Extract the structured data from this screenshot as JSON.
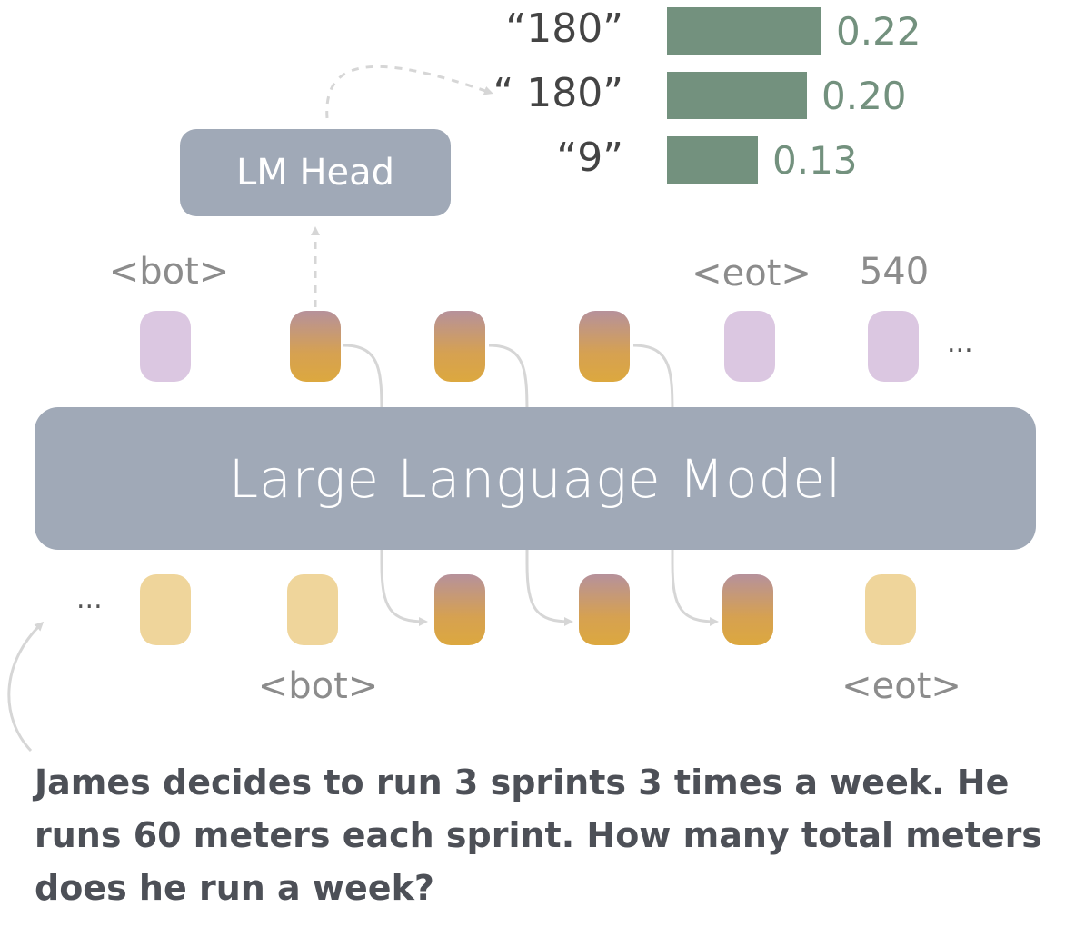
{
  "lm_head_label": "LM Head",
  "llm_label": "Large Language Model",
  "output_labels": {
    "bot": "<bot>",
    "eot": "<eot>",
    "answer": "540",
    "ellipsis": "..."
  },
  "input_labels": {
    "bot": "<bot>",
    "eot": "<eot>",
    "ellipsis": "..."
  },
  "question": "James decides to run 3 sprints 3 times a week.  He runs 60 meters each sprint.  How many total meters does he run a week?",
  "colors": {
    "model_box": "#a0a9b7",
    "special_token": "#dbc7e1",
    "input_token": "#efd59b",
    "continuous_thought_top": "#b6919b",
    "continuous_thought_bottom": "#dca83f",
    "bar": "#73917e"
  },
  "chart_data": {
    "type": "bar",
    "orientation": "horizontal",
    "categories": [
      "“180”",
      "“ 180”",
      "“9”"
    ],
    "values": [
      0.22,
      0.2,
      0.13
    ],
    "value_labels": [
      "0.22",
      "0.20",
      "0.13"
    ]
  }
}
